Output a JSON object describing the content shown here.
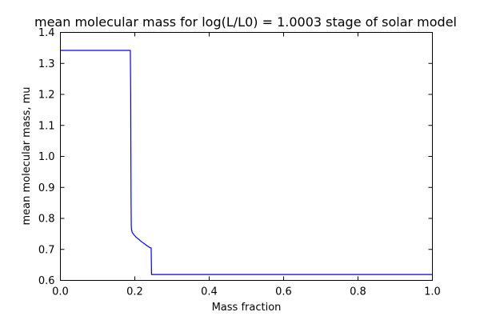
{
  "chart_data": {
    "type": "line",
    "title": "mean molecular mass for log(L/L0) = 1.0003 stage of solar model",
    "xlabel": "Mass fraction",
    "ylabel": "mean molecular mass, mu",
    "xlim": [
      0.0,
      1.0
    ],
    "ylim": [
      0.6,
      1.4
    ],
    "grid": false,
    "xticks": [
      0.0,
      0.2,
      0.4,
      0.6,
      0.8,
      1.0
    ],
    "xtick_labels": [
      "0.0",
      "0.2",
      "0.4",
      "0.6",
      "0.8",
      "1.0"
    ],
    "yticks": [
      0.6,
      0.7,
      0.8,
      0.9,
      1.0,
      1.1,
      1.2,
      1.3,
      1.4
    ],
    "ytick_labels": [
      "0.6",
      "0.7",
      "0.8",
      "0.9",
      "1.0",
      "1.1",
      "1.2",
      "1.3",
      "1.4"
    ],
    "series": [
      {
        "color": "#0000ff",
        "x": [
          0.0,
          0.1,
          0.188,
          0.189,
          0.1895,
          0.19,
          0.1905,
          0.191,
          0.193,
          0.197,
          0.203,
          0.21,
          0.218,
          0.226,
          0.235,
          0.242,
          0.244,
          0.245,
          0.3,
          0.5,
          0.7,
          0.9,
          1.0
        ],
        "y": [
          1.342,
          1.342,
          1.342,
          1.2,
          1.0,
          0.85,
          0.78,
          0.765,
          0.755,
          0.748,
          0.74,
          0.733,
          0.725,
          0.718,
          0.71,
          0.705,
          0.705,
          0.619,
          0.619,
          0.619,
          0.619,
          0.619,
          0.619
        ]
      }
    ]
  }
}
